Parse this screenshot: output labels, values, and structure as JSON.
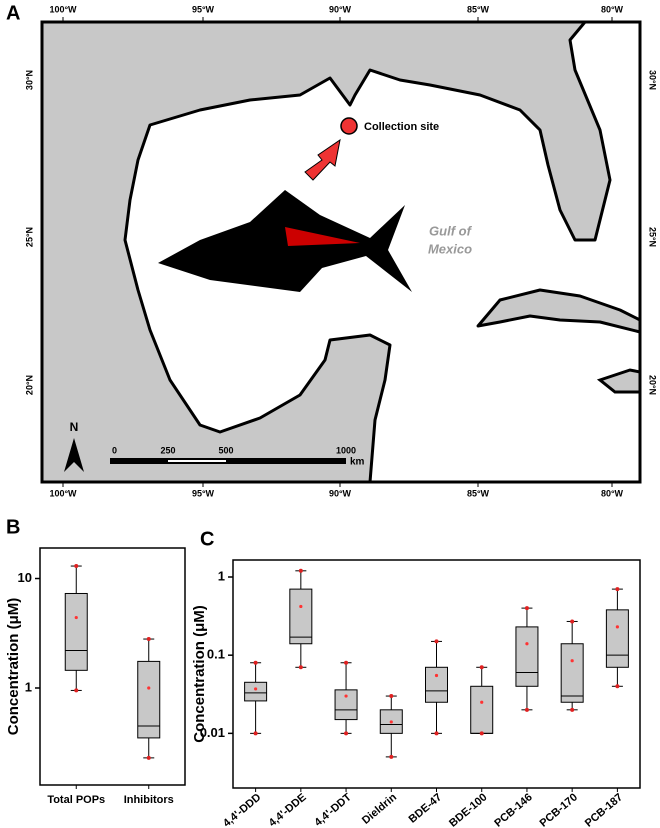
{
  "map": {
    "panel": "A",
    "lon_ticks": [
      "100°W",
      "95°W",
      "90°W",
      "85°W",
      "80°W"
    ],
    "lat_ticks": [
      "30°N",
      "25°N",
      "20°N"
    ],
    "site_label": "Collection site",
    "gulf_label": [
      "Gulf of",
      "Mexico"
    ],
    "north": "N",
    "scale_ticks": [
      "0",
      "250",
      "500",
      "1000"
    ],
    "scale_unit": "km"
  },
  "chart_data": [
    {
      "type": "box",
      "panel": "B",
      "ylabel": "Concentration (μM)",
      "log": true,
      "ylim": [
        0.13,
        19
      ],
      "yticks": [
        1,
        10
      ],
      "categories": [
        "Total POPs",
        "Inhibitors"
      ],
      "min": [
        0.95,
        0.23
      ],
      "q1": [
        1.45,
        0.35
      ],
      "median": [
        2.2,
        0.45
      ],
      "q3": [
        7.3,
        1.75
      ],
      "max": [
        13,
        2.8
      ],
      "mean": [
        4.4,
        1.0
      ],
      "box_color": "#c8c8c8",
      "mean_color": "#ff3333",
      "outlier_color": "#e02020"
    },
    {
      "type": "box",
      "panel": "C",
      "ylabel": "Concentration (μM)",
      "log": true,
      "ylim": [
        0.002,
        1.65
      ],
      "yticks": [
        0.01,
        0.1,
        1
      ],
      "categories": [
        "4,4'-DDD",
        "4,4'-DDE",
        "4,4'-DDT",
        "Dieldrin",
        "BDE-47",
        "BDE-100",
        "PCB-146",
        "PCB-170",
        "PCB-187"
      ],
      "min": [
        0.01,
        0.07,
        0.01,
        0.005,
        0.01,
        0.01,
        0.02,
        0.02,
        0.04
      ],
      "q1": [
        0.026,
        0.14,
        0.015,
        0.01,
        0.025,
        0.01,
        0.04,
        0.025,
        0.07
      ],
      "median": [
        0.033,
        0.17,
        0.02,
        0.013,
        0.035,
        0.01,
        0.06,
        0.03,
        0.1
      ],
      "q3": [
        0.045,
        0.7,
        0.036,
        0.02,
        0.07,
        0.04,
        0.23,
        0.14,
        0.38
      ],
      "max": [
        0.08,
        1.2,
        0.08,
        0.03,
        0.15,
        0.07,
        0.4,
        0.27,
        0.7
      ],
      "mean": [
        0.037,
        0.42,
        0.03,
        0.014,
        0.055,
        0.025,
        0.14,
        0.085,
        0.23
      ],
      "box_color": "#c8c8c8",
      "mean_color": "#ff3333",
      "outlier_color": "#e02020"
    }
  ]
}
